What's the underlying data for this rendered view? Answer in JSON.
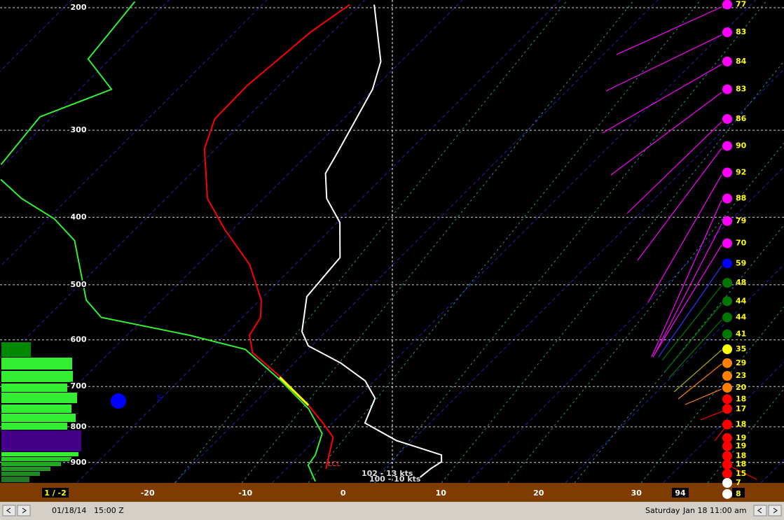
{
  "chart_data": {
    "type": "skewt",
    "xlim": [
      -35.1,
      45.1
    ],
    "ylim": [
      963,
      195
    ],
    "log": true,
    "grid": true,
    "xticks": [
      -20,
      -10,
      0,
      10,
      20,
      30
    ],
    "yticks": [
      200,
      300,
      400,
      500,
      600,
      700,
      800,
      900
    ],
    "series": [
      {
        "color": "#ffffff",
        "pressure": [
          198,
          239,
          262,
          323,
          346,
          376,
          407,
          457,
          520,
          584,
          612,
          648,
          687,
          728,
          790,
          837,
          878,
          898,
          919,
          945
        ],
        "values": [
          -45.8,
          -39.3,
          -37.3,
          -34.4,
          -33.5,
          -30.8,
          -27.0,
          -23.4,
          -22.8,
          -19.7,
          -17.6,
          -12.5,
          -8.2,
          -5.4,
          -3.9,
          1.1,
          7.2,
          7.9,
          7.5,
          7.3
        ]
      },
      {
        "color": "#ff0000",
        "pressure": [
          198,
          217,
          259,
          289,
          319,
          376,
          417,
          468,
          526,
          557,
          591,
          626,
          679,
          745,
          790,
          828,
          878,
          919
        ],
        "values": [
          -48.3,
          -49.5,
          -50.5,
          -50.4,
          -48.4,
          -43.0,
          -38.0,
          -31.9,
          -27.1,
          -25.4,
          -24.7,
          -22.6,
          -17.2,
          -11.5,
          -8.2,
          -5.7,
          -4.3,
          -3.2
        ]
      },
      {
        "color": "#33ee33",
        "pressure": [
          196,
          237,
          262,
          287,
          336,
          null,
          353,
          376,
          402,
          432,
          526,
          557,
          591,
          619,
          687,
          754,
          818,
          878,
          908,
          958
        ],
        "values": [
          -70.6,
          -69.5,
          -64.0,
          -68.5,
          -67.6,
          null,
          -66.1,
          -62.0,
          -56.6,
          -52.3,
          -45.0,
          -41.7,
          -30.8,
          -23.7,
          -16.8,
          -11.1,
          -7.2,
          -5.7,
          -5.4,
          -3.0
        ]
      },
      {
        "color": "#ffff00",
        "pressure": [
          679,
          745
        ],
        "values": [
          -17.3,
          -11.5
        ]
      }
    ],
    "wind": {
      "pressures": [
        198,
        217,
        239,
        262,
        289,
        316,
        345,
        376,
        405,
        436,
        466,
        497,
        528,
        557,
        589,
        619,
        648,
        676,
        703,
        730,
        754,
        794,
        830,
        853,
        881,
        906,
        934,
        963,
        999
      ],
      "speeds": [
        77,
        83,
        84,
        83,
        86,
        90,
        92,
        88,
        79,
        70,
        59,
        48,
        44,
        44,
        41,
        35,
        29,
        23,
        20,
        18,
        17,
        18,
        19,
        19,
        18,
        18,
        15,
        7,
        8
      ],
      "colors": [
        "#ff00ff",
        "#ff00ff",
        "#ff00ff",
        "#ff00ff",
        "#ff00ff",
        "#ff00ff",
        "#ff00ff",
        "#ff00ff",
        "#ff00ff",
        "#ff00ff",
        "#0000ff",
        "#007700",
        "#007700",
        "#007700",
        "#007700",
        "#ffff00",
        "#ff8000",
        "#ff8000",
        "#ff8000",
        "#ff0000",
        "#ff0000",
        "#ff0000",
        "#ff0000",
        "#ff0000",
        "#ff0000",
        "#ff0000",
        "#ff0000",
        "#ffffff",
        "#ffffff"
      ]
    },
    "annotations": [
      "LCL",
      "102 - 13 kts",
      "100 - 10 kts",
      "S"
    ],
    "surface_label": "1 / -2",
    "index_label": "94"
  },
  "status_bar": {
    "date": "01/18/14",
    "time": "15:00 Z",
    "day": "Saturday",
    "local_time": "Jan 18 11:00 am"
  }
}
